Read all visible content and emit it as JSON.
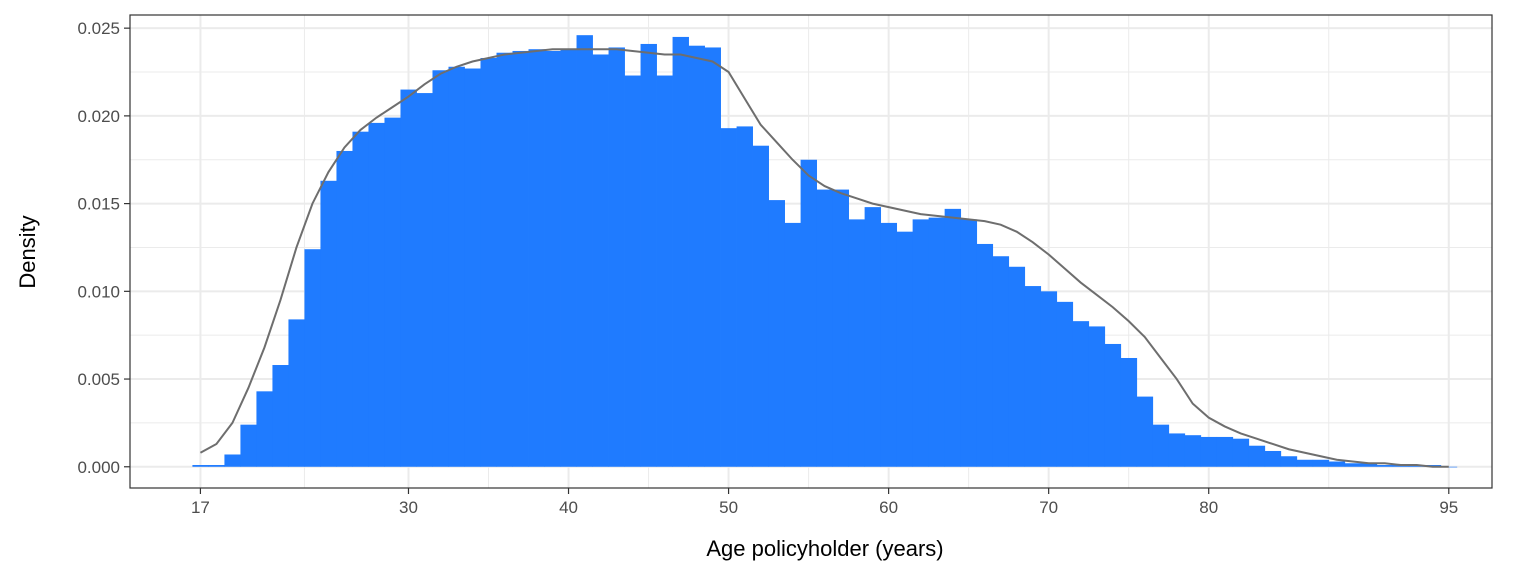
{
  "chart_data": {
    "type": "bar",
    "xlabel": "Age policyholder (years)",
    "ylabel": "Density",
    "xlim": [
      12.6,
      97.7
    ],
    "ylim": [
      -0.00121,
      0.02575
    ],
    "x_ticks": [
      17,
      30,
      40,
      50,
      60,
      70,
      80,
      95
    ],
    "x_minor_ticks": [
      23.5,
      35,
      45,
      55,
      65,
      75,
      87.5
    ],
    "y_ticks": [
      0.0,
      0.005,
      0.01,
      0.015,
      0.02,
      0.025
    ],
    "y_tick_labels": [
      "0.000",
      "0.005",
      "0.010",
      "0.015",
      "0.020",
      "0.025"
    ],
    "grid": true,
    "colors": {
      "bars": "#1f7bff",
      "density_line": "#6e6e6e",
      "grid": "#ebebeb",
      "panel_border": "#333333"
    },
    "histogram": {
      "bin_width": 1,
      "bin_start": 16.5,
      "values": [
        0.0001,
        0.0001,
        0.0007,
        0.0024,
        0.0043,
        0.0058,
        0.0084,
        0.0124,
        0.0163,
        0.018,
        0.0191,
        0.0196,
        0.0199,
        0.0215,
        0.0213,
        0.0226,
        0.0228,
        0.0227,
        0.0233,
        0.0236,
        0.0237,
        0.0238,
        0.0237,
        0.0238,
        0.0246,
        0.0235,
        0.0239,
        0.0223,
        0.0241,
        0.0223,
        0.0245,
        0.024,
        0.0239,
        0.0193,
        0.0194,
        0.0183,
        0.0152,
        0.0139,
        0.0175,
        0.0158,
        0.0158,
        0.0141,
        0.0148,
        0.0139,
        0.0134,
        0.0141,
        0.0142,
        0.0147,
        0.0141,
        0.0127,
        0.012,
        0.0114,
        0.0103,
        0.01,
        0.0094,
        0.0083,
        0.008,
        0.007,
        0.0062,
        0.004,
        0.0024,
        0.0019,
        0.0018,
        0.0017,
        0.0017,
        0.0016,
        0.0012,
        0.0009,
        0.0006,
        0.0004,
        0.0004,
        0.0003,
        0.0002,
        0.0002,
        0.0001,
        0.0001,
        0.0001,
        0.0001,
        0.0
      ]
    },
    "density_curve": {
      "x": [
        17,
        18,
        19,
        20,
        21,
        22,
        23,
        24,
        25,
        26,
        27,
        28,
        29,
        30,
        31,
        32,
        33,
        34,
        35,
        36,
        37,
        38,
        39,
        40,
        41,
        42,
        43,
        44,
        45,
        46,
        47,
        48,
        49,
        50,
        51,
        52,
        53,
        54,
        55,
        56,
        57,
        58,
        59,
        60,
        61,
        62,
        63,
        64,
        65,
        66,
        67,
        68,
        69,
        70,
        71,
        72,
        73,
        74,
        75,
        76,
        77,
        78,
        79,
        80,
        81,
        82,
        83,
        84,
        85,
        86,
        87,
        88,
        89,
        90,
        91,
        92,
        93,
        94,
        95
      ],
      "y": [
        0.0008,
        0.0013,
        0.0025,
        0.0045,
        0.0068,
        0.0095,
        0.0125,
        0.015,
        0.0168,
        0.0182,
        0.0192,
        0.0199,
        0.0205,
        0.0211,
        0.0218,
        0.0224,
        0.0228,
        0.0231,
        0.0233,
        0.0235,
        0.0236,
        0.0237,
        0.0238,
        0.0238,
        0.0238,
        0.0238,
        0.0238,
        0.0237,
        0.0236,
        0.0235,
        0.0235,
        0.0233,
        0.0231,
        0.0225,
        0.021,
        0.0195,
        0.0185,
        0.0175,
        0.0166,
        0.016,
        0.0156,
        0.0153,
        0.015,
        0.0148,
        0.0146,
        0.0144,
        0.0143,
        0.0142,
        0.0141,
        0.014,
        0.0138,
        0.0134,
        0.0128,
        0.0121,
        0.0113,
        0.0105,
        0.0098,
        0.0091,
        0.0083,
        0.0074,
        0.0062,
        0.005,
        0.0036,
        0.0028,
        0.0023,
        0.0019,
        0.0016,
        0.0013,
        0.001,
        0.0008,
        0.0006,
        0.0004,
        0.0003,
        0.0002,
        0.0002,
        0.0001,
        0.0001,
        0.0,
        0.0
      ]
    }
  }
}
